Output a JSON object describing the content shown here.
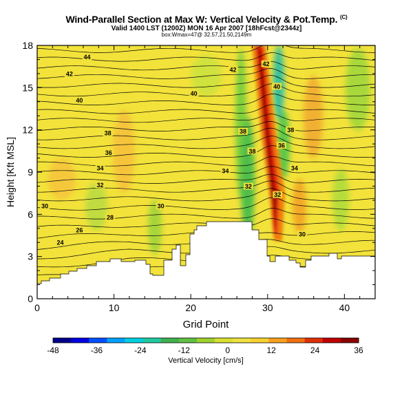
{
  "header": {
    "title": "Wind-Parallel Section at Max W: Vertical Velocity & Pot.Temp.",
    "title_mark": "(C)",
    "subtitle": "Valid 1400 LST (1200Z) MON 16 Apr 2007 [18hFcst@2344z]",
    "subsubtitle": "box:Wmax=47@ 32.57,21.50,2149m"
  },
  "chart_data": {
    "type": "heatmap",
    "xlabel": "Grid Point",
    "ylabel": "Height [Kft MSL]",
    "xlim": [
      0,
      44
    ],
    "ylim": [
      0,
      18
    ],
    "xticks": [
      0,
      10,
      20,
      30,
      40
    ],
    "yticks": [
      0,
      3,
      6,
      9,
      12,
      15,
      18
    ],
    "xtick_labels": [
      "0",
      "10",
      "20",
      "30",
      "40"
    ],
    "ytick_labels": [
      "0",
      "3",
      "6",
      "9",
      "12",
      "15",
      "18"
    ],
    "colorbar": {
      "label": "Vertical Velocity [cm/s]",
      "min": -48,
      "max": 36,
      "ticks": [
        -48,
        -36,
        -24,
        -12,
        0,
        12,
        24,
        36
      ],
      "tick_labels": [
        "-48",
        "-36",
        "-24",
        "-12",
        "0",
        "12",
        "24",
        "36"
      ],
      "colors": [
        "#00008b",
        "#0000e0",
        "#0050ff",
        "#00a0ff",
        "#00d0e0",
        "#20c8a0",
        "#40b050",
        "#60c040",
        "#a0d030",
        "#d8e030",
        "#f0e040",
        "#f8d030",
        "#f8a020",
        "#f07010",
        "#e03008",
        "#c00000",
        "#8b0000"
      ]
    },
    "updraft_core": {
      "x_center": 30.5,
      "max_w": 47,
      "max_height_kft": 7.0
    },
    "theta_contour_labels": [
      {
        "value": "44",
        "x": 6.5,
        "y": 17.2
      },
      {
        "value": "42",
        "x": 4.2,
        "y": 16.0
      },
      {
        "value": "42",
        "x": 25.5,
        "y": 16.3
      },
      {
        "value": "42",
        "x": 29.8,
        "y": 16.7
      },
      {
        "value": "40",
        "x": 5.5,
        "y": 14.1
      },
      {
        "value": "40",
        "x": 20.4,
        "y": 14.6
      },
      {
        "value": "40",
        "x": 31.2,
        "y": 15.1
      },
      {
        "value": "38",
        "x": 9.2,
        "y": 11.8
      },
      {
        "value": "38",
        "x": 26.8,
        "y": 11.9
      },
      {
        "value": "38",
        "x": 33.0,
        "y": 12.0
      },
      {
        "value": "38",
        "x": 28.0,
        "y": 10.5
      },
      {
        "value": "36",
        "x": 9.3,
        "y": 10.4
      },
      {
        "value": "36",
        "x": 31.8,
        "y": 10.9
      },
      {
        "value": "34",
        "x": 8.2,
        "y": 9.3
      },
      {
        "value": "34",
        "x": 24.5,
        "y": 9.1
      },
      {
        "value": "34",
        "x": 33.5,
        "y": 9.3
      },
      {
        "value": "32",
        "x": 8.2,
        "y": 8.1
      },
      {
        "value": "32",
        "x": 27.5,
        "y": 8.0
      },
      {
        "value": "32",
        "x": 31.3,
        "y": 7.4
      },
      {
        "value": "30",
        "x": 1.0,
        "y": 6.6
      },
      {
        "value": "30",
        "x": 16.1,
        "y": 6.6
      },
      {
        "value": "30",
        "x": 34.5,
        "y": 4.6
      },
      {
        "value": "28",
        "x": 9.5,
        "y": 5.8
      },
      {
        "value": "26",
        "x": 5.5,
        "y": 4.9
      },
      {
        "value": "24",
        "x": 3.0,
        "y": 4.0
      }
    ]
  }
}
